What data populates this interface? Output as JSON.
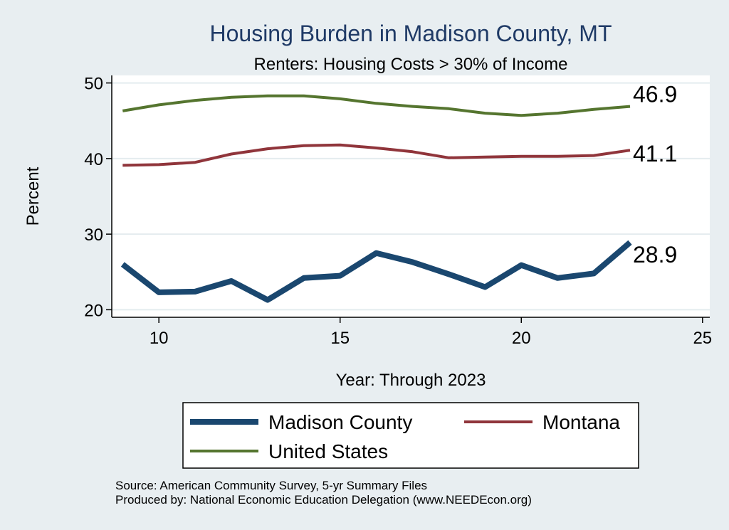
{
  "chart_data": {
    "type": "line",
    "title": "Housing Burden in Madison County, MT",
    "subtitle": "Renters: Housing Costs > 30% of Income",
    "xlabel": "Year: Through 2023",
    "ylabel": "Percent",
    "xlim": [
      8.7,
      25.2
    ],
    "ylim": [
      19,
      51
    ],
    "xticks": [
      10,
      15,
      20,
      25
    ],
    "yticks": [
      20,
      30,
      40,
      50
    ],
    "grid": true,
    "legend_position": "bottom",
    "x": [
      9,
      10,
      11,
      12,
      13,
      14,
      15,
      16,
      17,
      18,
      19,
      20,
      21,
      22,
      23
    ],
    "series": [
      {
        "name": "Madison County",
        "color": "#1a476f",
        "values": [
          26.0,
          22.3,
          22.4,
          23.8,
          21.3,
          24.2,
          24.5,
          27.5,
          26.3,
          24.7,
          23.0,
          25.9,
          24.2,
          24.8,
          28.9
        ],
        "end_label": "28.9"
      },
      {
        "name": "Montana",
        "color": "#90353b",
        "values": [
          39.1,
          39.2,
          39.5,
          40.6,
          41.3,
          41.7,
          41.8,
          41.4,
          40.9,
          40.1,
          40.2,
          40.3,
          40.3,
          40.4,
          41.1
        ],
        "end_label": "41.1"
      },
      {
        "name": "United States",
        "color": "#55752f",
        "values": [
          46.3,
          47.1,
          47.7,
          48.1,
          48.3,
          48.3,
          47.9,
          47.3,
          46.9,
          46.6,
          46.0,
          45.7,
          46.0,
          46.5,
          46.9
        ],
        "end_label": "46.9"
      }
    ],
    "source_note": "Source: American Community Survey, 5-yr Summary Files",
    "producer_note": "Produced by: National Economic Education Delegation (www.NEEDEcon.org)"
  },
  "colors": {
    "background": "#e8eef1",
    "plot_background": "#ffffff",
    "gridline": "#e4ecef",
    "title": "#1f3a66"
  }
}
